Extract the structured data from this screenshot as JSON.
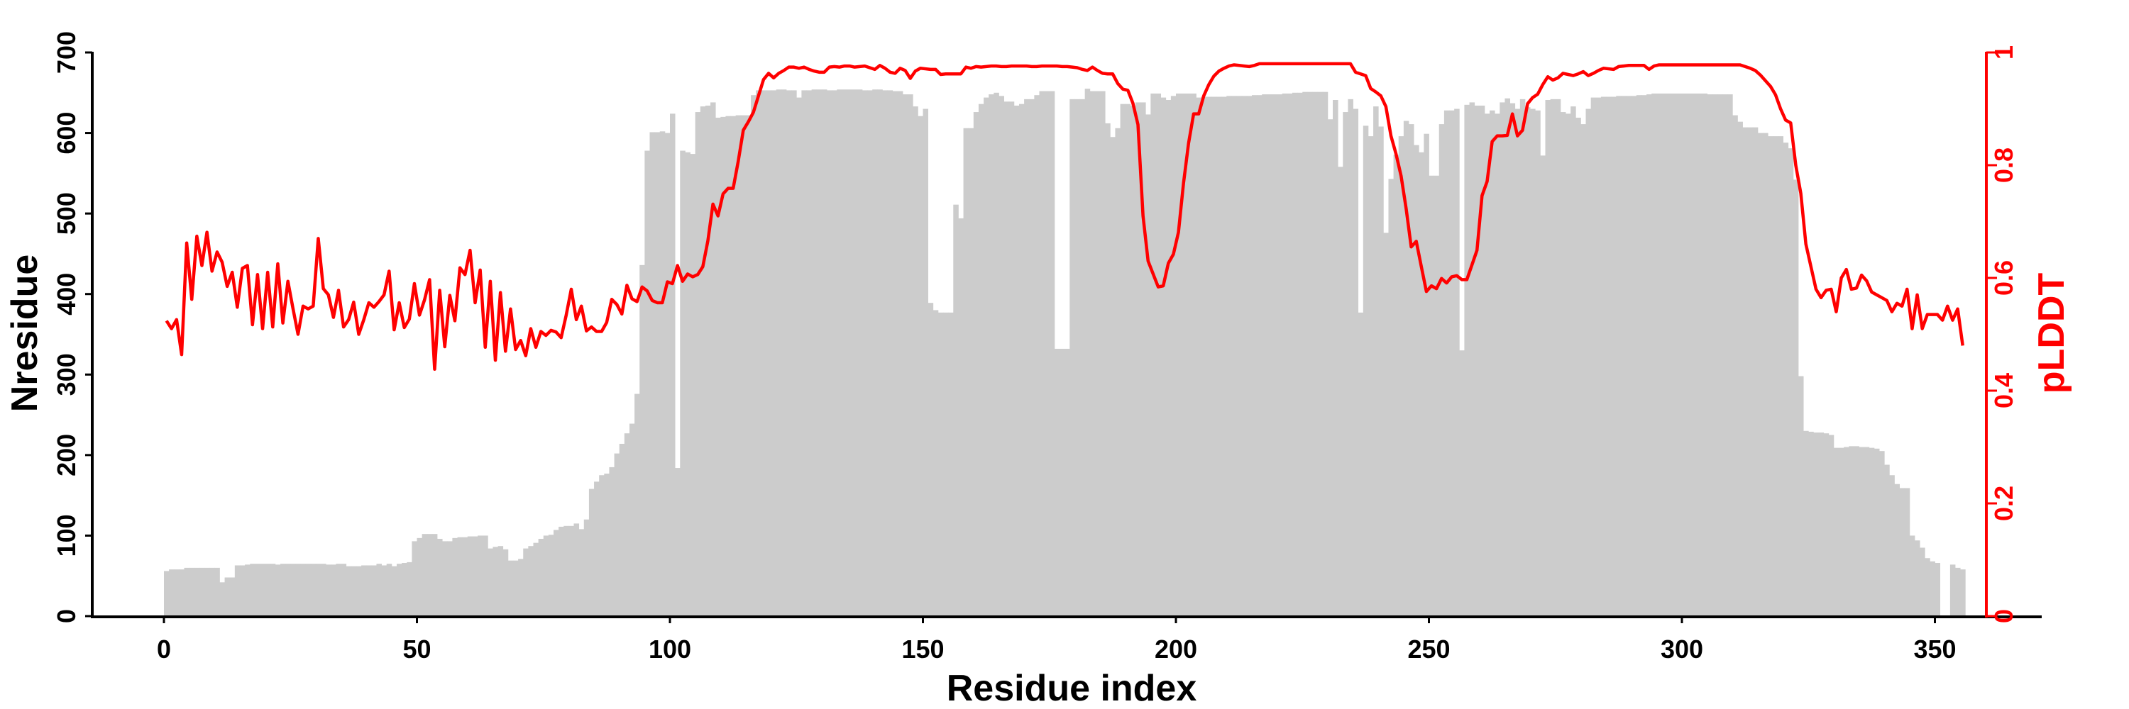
{
  "chart_data": {
    "type": "bar+line",
    "xlabel": "Residue index",
    "ylabel": "Nresidue",
    "ylabel_right": "pLDDT",
    "xlim": [
      -15,
      370
    ],
    "ylim": [
      0,
      700
    ],
    "ylim_right": [
      0,
      1
    ],
    "x_ticks": [
      "0",
      "50",
      "100",
      "150",
      "200",
      "250",
      "300",
      "350"
    ],
    "y_ticks": [
      "0",
      "100",
      "200",
      "300",
      "400",
      "500",
      "600",
      "700"
    ],
    "y_ticks_right": [
      "0",
      "0.2",
      "0.4",
      "0.6",
      "0.8",
      "1"
    ],
    "grid": false,
    "colors": {
      "bars": "#cccccc",
      "line": "#ff0000",
      "axis": "#000000",
      "axis_right": "#ff0000"
    },
    "series": [
      {
        "name": "Nresidue",
        "type": "bar",
        "axis": "left",
        "values": [
          56,
          58,
          58,
          58,
          60,
          60,
          60,
          60,
          60,
          60,
          60,
          42,
          48,
          48,
          63,
          63,
          64,
          65,
          65,
          65,
          65,
          65,
          64,
          65,
          65,
          65,
          65,
          65,
          65,
          65,
          65,
          65,
          64,
          64,
          65,
          65,
          62,
          62,
          62,
          63,
          63,
          63,
          65,
          63,
          65,
          62,
          65,
          66,
          67,
          93,
          97,
          102,
          102,
          102,
          96,
          93,
          93,
          97,
          98,
          98,
          99,
          99,
          100,
          100,
          84,
          86,
          87,
          83,
          69,
          69,
          71,
          84,
          87,
          91,
          96,
          100,
          101,
          107,
          111,
          112,
          112,
          115,
          108,
          120,
          158,
          167,
          175,
          177,
          185,
          202,
          214,
          227,
          239,
          276,
          436,
          578,
          601,
          601,
          602,
          600,
          624,
          184,
          578,
          576,
          574,
          626,
          633,
          634,
          638,
          619,
          620,
          621,
          621,
          622,
          622,
          622,
          647,
          653,
          653,
          653,
          653,
          654,
          654,
          653,
          653,
          644,
          653,
          653,
          654,
          654,
          654,
          653,
          653,
          654,
          654,
          654,
          654,
          654,
          653,
          653,
          654,
          654,
          653,
          653,
          652,
          652,
          648,
          648,
          633,
          621,
          630,
          389,
          380,
          377,
          377,
          377,
          511,
          494,
          606,
          606,
          626,
          636,
          644,
          648,
          650,
          646,
          639,
          639,
          634,
          636,
          642,
          642,
          647,
          652,
          652,
          652,
          332,
          332,
          332,
          642,
          642,
          642,
          655,
          652,
          652,
          652,
          612,
          595,
          606,
          636,
          636,
          634,
          638,
          638,
          623,
          649,
          649,
          644,
          641,
          646,
          649,
          649,
          649,
          649,
          644,
          645,
          645,
          645,
          645,
          645,
          646,
          646,
          646,
          646,
          646,
          647,
          647,
          648,
          648,
          648,
          648,
          649,
          649,
          650,
          650,
          651,
          651,
          651,
          651,
          651,
          617,
          641,
          558,
          626,
          642,
          630,
          377,
          609,
          596,
          633,
          608,
          476,
          543,
          573,
          596,
          615,
          611,
          585,
          576,
          599,
          547,
          547,
          611,
          628,
          628,
          630,
          330,
          635,
          638,
          634,
          634,
          624,
          628,
          624,
          638,
          643,
          637,
          630,
          642,
          632,
          630,
          628,
          572,
          641,
          642,
          642,
          626,
          624,
          633,
          619,
          611,
          630,
          644,
          644,
          645,
          645,
          645,
          646,
          646,
          646,
          646,
          647,
          647,
          648,
          649,
          649,
          649,
          649,
          649,
          649,
          649,
          649,
          649,
          649,
          649,
          648,
          648,
          648,
          648,
          648,
          622,
          614,
          607,
          607,
          607,
          600,
          600,
          596,
          596,
          596,
          588,
          581,
          542,
          298,
          230,
          229,
          228,
          228,
          227,
          225,
          209,
          209,
          210,
          211,
          211,
          210,
          210,
          209,
          208,
          205,
          188,
          175,
          164,
          159,
          159,
          100,
          94,
          85,
          72,
          68,
          66,
          0,
          0,
          64,
          60,
          58
        ]
      },
      {
        "name": "pLDDT",
        "type": "line",
        "axis": "right",
        "values": [
          0.524,
          0.51,
          0.526,
          0.464,
          0.662,
          0.562,
          0.674,
          0.622,
          0.681,
          0.612,
          0.646,
          0.628,
          0.585,
          0.61,
          0.548,
          0.617,
          0.622,
          0.517,
          0.606,
          0.51,
          0.61,
          0.513,
          0.625,
          0.52,
          0.594,
          0.546,
          0.5,
          0.55,
          0.545,
          0.55,
          0.67,
          0.581,
          0.57,
          0.53,
          0.578,
          0.513,
          0.526,
          0.557,
          0.5,
          0.526,
          0.556,
          0.548,
          0.558,
          0.57,
          0.612,
          0.508,
          0.556,
          0.512,
          0.527,
          0.59,
          0.534,
          0.561,
          0.597,
          0.438,
          0.578,
          0.478,
          0.569,
          0.524,
          0.618,
          0.606,
          0.649,
          0.556,
          0.614,
          0.477,
          0.594,
          0.454,
          0.574,
          0.47,
          0.545,
          0.473,
          0.489,
          0.462,
          0.51,
          0.477,
          0.505,
          0.498,
          0.507,
          0.504,
          0.494,
          0.534,
          0.58,
          0.526,
          0.55,
          0.506,
          0.513,
          0.505,
          0.505,
          0.521,
          0.562,
          0.553,
          0.536,
          0.587,
          0.563,
          0.558,
          0.584,
          0.577,
          0.56,
          0.556,
          0.556,
          0.593,
          0.59,
          0.622,
          0.594,
          0.607,
          0.602,
          0.606,
          0.62,
          0.666,
          0.731,
          0.71,
          0.749,
          0.759,
          0.759,
          0.807,
          0.862,
          0.877,
          0.894,
          0.923,
          0.952,
          0.963,
          0.955,
          0.963,
          0.968,
          0.974,
          0.974,
          0.972,
          0.974,
          0.97,
          0.967,
          0.965,
          0.965,
          0.974,
          0.975,
          0.974,
          0.976,
          0.976,
          0.974,
          0.975,
          0.976,
          0.973,
          0.97,
          0.977,
          0.972,
          0.965,
          0.963,
          0.972,
          0.968,
          0.954,
          0.967,
          0.972,
          0.971,
          0.97,
          0.97,
          0.961,
          0.962,
          0.962,
          0.962,
          0.962,
          0.974,
          0.972,
          0.975,
          0.974,
          0.975,
          0.976,
          0.976,
          0.975,
          0.975,
          0.976,
          0.976,
          0.976,
          0.976,
          0.975,
          0.975,
          0.976,
          0.976,
          0.976,
          0.976,
          0.975,
          0.975,
          0.974,
          0.973,
          0.97,
          0.968,
          0.974,
          0.968,
          0.963,
          0.962,
          0.962,
          0.945,
          0.935,
          0.933,
          0.91,
          0.872,
          0.71,
          0.63,
          0.607,
          0.584,
          0.586,
          0.626,
          0.642,
          0.681,
          0.768,
          0.839,
          0.891,
          0.891,
          0.923,
          0.943,
          0.958,
          0.967,
          0.972,
          0.976,
          0.978,
          0.977,
          0.976,
          0.975,
          0.977,
          0.98,
          0.98,
          0.98,
          0.98,
          0.98,
          0.98,
          0.98,
          0.98,
          0.98,
          0.98,
          0.98,
          0.98,
          0.98,
          0.98,
          0.98,
          0.98,
          0.98,
          0.98,
          0.98,
          0.965,
          0.962,
          0.959,
          0.936,
          0.93,
          0.923,
          0.904,
          0.852,
          0.82,
          0.781,
          0.723,
          0.655,
          0.665,
          0.62,
          0.576,
          0.586,
          0.581,
          0.599,
          0.591,
          0.602,
          0.604,
          0.597,
          0.597,
          0.623,
          0.649,
          0.746,
          0.771,
          0.842,
          0.852,
          0.852,
          0.853,
          0.891,
          0.852,
          0.862,
          0.909,
          0.92,
          0.926,
          0.943,
          0.957,
          0.951,
          0.955,
          0.963,
          0.961,
          0.959,
          0.962,
          0.966,
          0.959,
          0.963,
          0.968,
          0.972,
          0.971,
          0.97,
          0.975,
          0.976,
          0.977,
          0.977,
          0.977,
          0.977,
          0.97,
          0.976,
          0.978,
          0.978,
          0.978,
          0.978,
          0.978,
          0.978,
          0.978,
          0.978,
          0.978,
          0.978,
          0.978,
          0.978,
          0.978,
          0.978,
          0.978,
          0.978,
          0.978,
          0.975,
          0.972,
          0.968,
          0.96,
          0.95,
          0.94,
          0.925,
          0.9,
          0.88,
          0.875,
          0.8,
          0.75,
          0.66,
          0.62,
          0.58,
          0.565,
          0.578,
          0.58,
          0.54,
          0.6,
          0.615,
          0.58,
          0.582,
          0.605,
          0.595,
          0.575,
          0.57,
          0.565,
          0.56,
          0.54,
          0.555,
          0.55,
          0.58,
          0.51,
          0.57,
          0.51,
          0.535,
          0.535,
          0.535,
          0.525,
          0.55,
          0.525,
          0.545,
          0.48
        ]
      }
    ]
  }
}
